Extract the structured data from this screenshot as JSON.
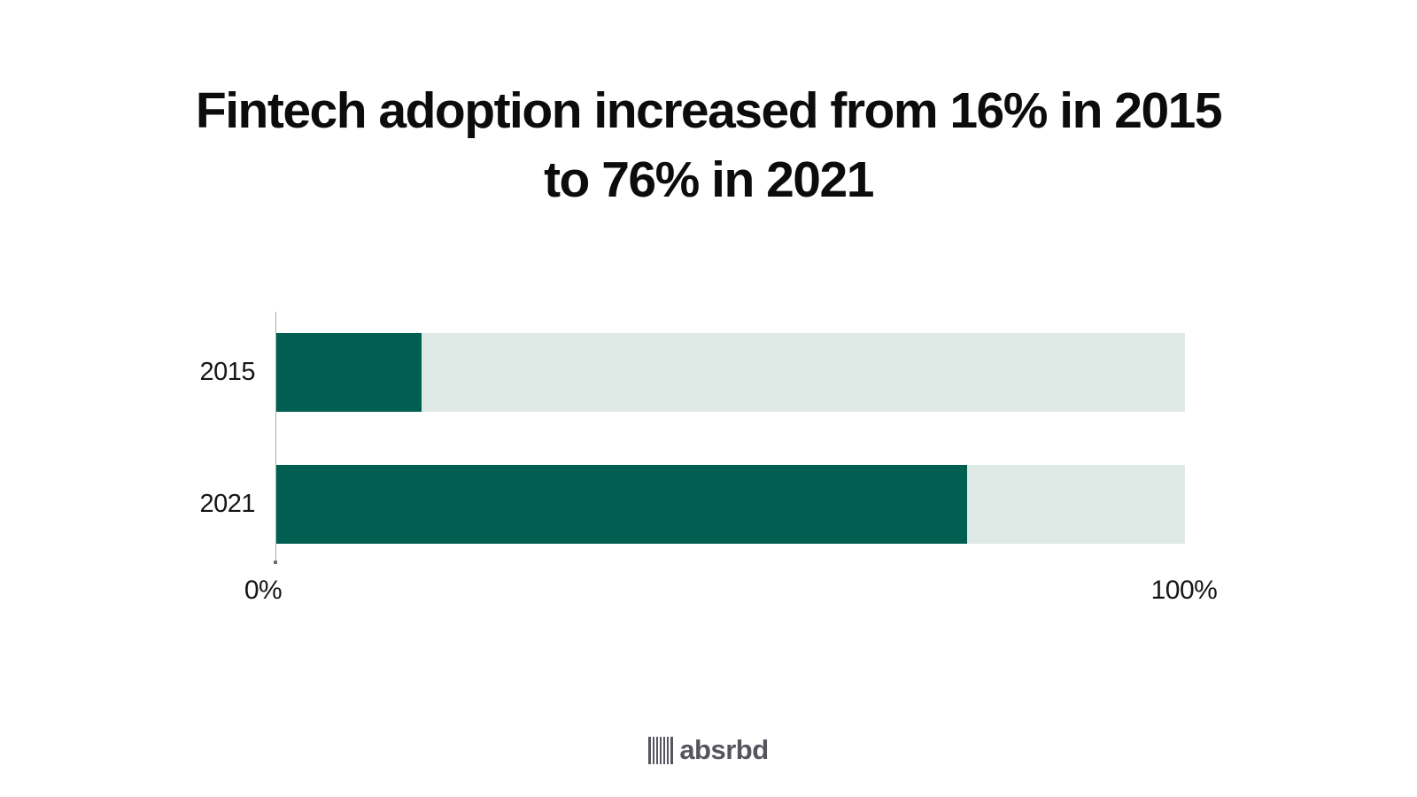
{
  "title": {
    "line1": "Fintech adoption increased from 16% in 2015",
    "line2": "to 76% in 2021"
  },
  "chart_data": {
    "type": "bar",
    "orientation": "horizontal",
    "title": "Fintech adoption increased from 16% in 2015 to 76% in 2021",
    "categories": [
      "2015",
      "2021"
    ],
    "values": [
      16,
      76
    ],
    "value_unit": "%",
    "xlabel": "",
    "ylabel": "",
    "xlim": [
      0,
      100
    ],
    "x_ticks": [
      "0%",
      "100%"
    ],
    "grid": false,
    "legend": false,
    "colors": {
      "bar_fill": "#005f50",
      "bar_track": "#dfeae7",
      "axis_line": "#a9adac",
      "title_text": "#0c0c0c",
      "label_text": "#161616"
    }
  },
  "footer": {
    "logo_text": "absrbd",
    "logo_icon": "barcode-icon",
    "logo_color": "#54555e"
  }
}
